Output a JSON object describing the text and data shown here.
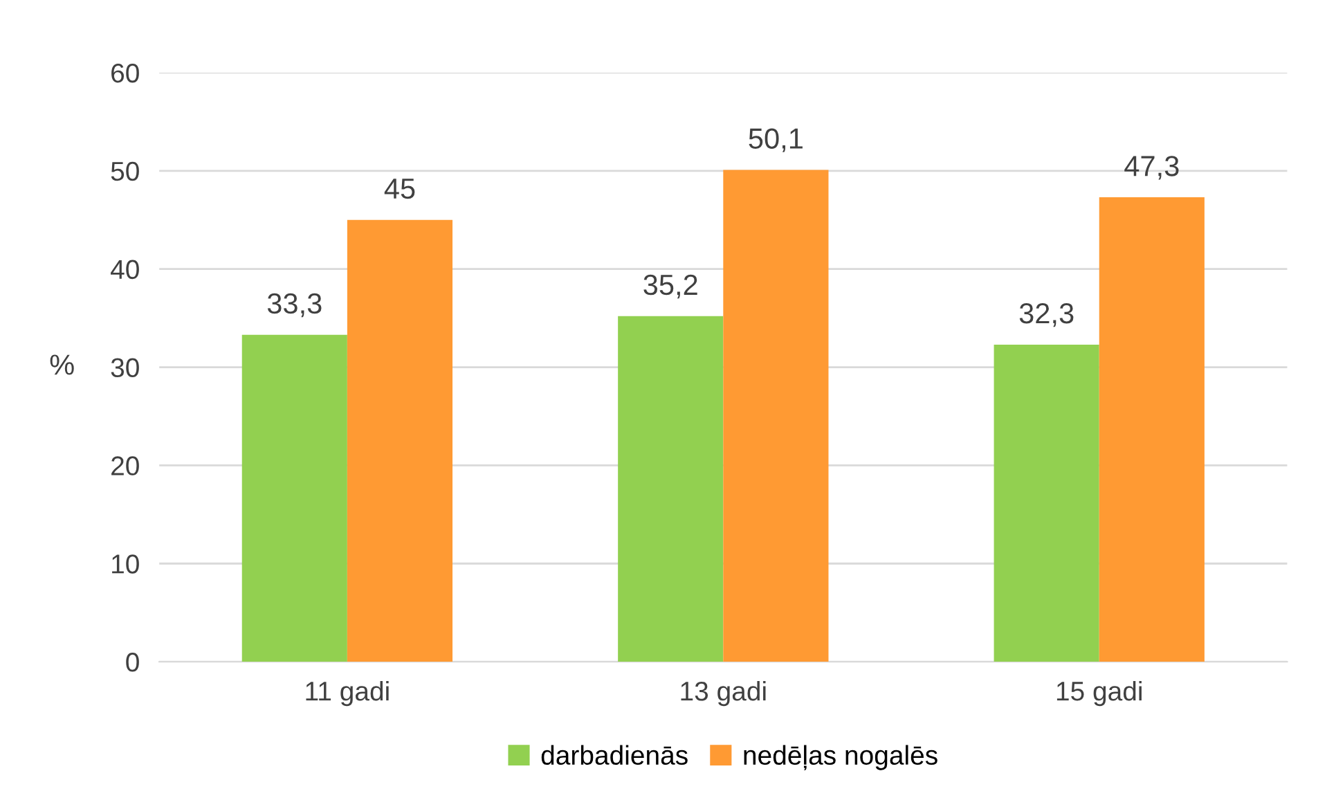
{
  "chart_data": {
    "type": "bar",
    "ylabel": "%",
    "categories": [
      "11 gadi",
      "13 gadi",
      "15 gadi"
    ],
    "series": [
      {
        "name": "darbadienās",
        "color": "#92d050",
        "values": [
          33.3,
          35.2,
          32.3
        ],
        "value_labels": [
          "33,3",
          "35,2",
          "32,3"
        ]
      },
      {
        "name": "nedēļas nogalēs",
        "color": "#ff9a33",
        "values": [
          45,
          50.1,
          47.3
        ],
        "value_labels": [
          "45",
          "50,1",
          "47,3"
        ]
      }
    ],
    "ylim": [
      0,
      60
    ],
    "yticks": [
      0,
      10,
      20,
      30,
      40,
      50,
      60
    ],
    "grid": "y",
    "legend": "bottom"
  }
}
